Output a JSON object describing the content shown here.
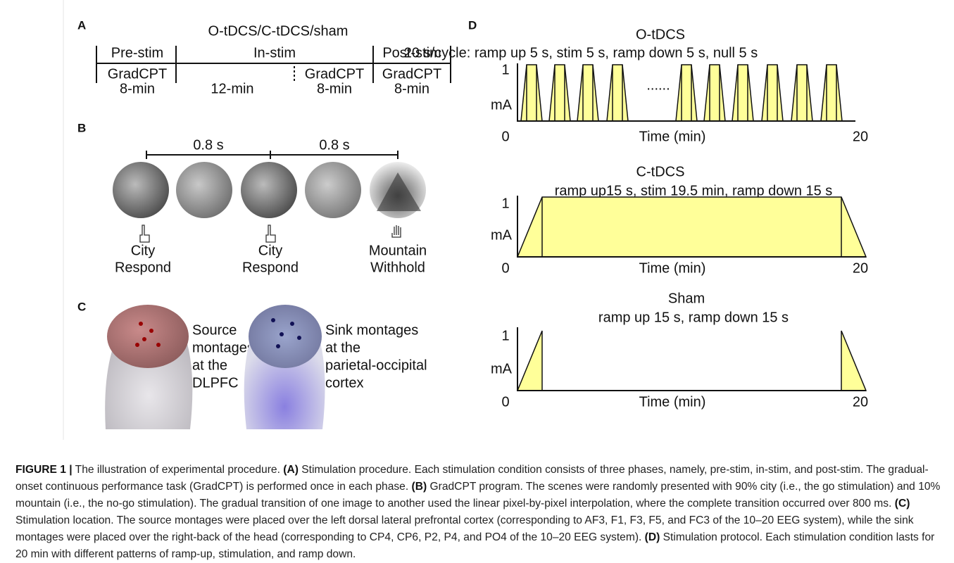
{
  "panel_a": {
    "label": "A",
    "title": "O-tDCS/C-tDCS/sham",
    "phases": [
      "Pre-stim",
      "In-stim",
      "Post-stim"
    ],
    "tasks": [
      "GradCPT",
      "GradCPT",
      "GradCPT"
    ],
    "durations": [
      "8-min",
      "12-min",
      "8-min",
      "8-min"
    ]
  },
  "panel_b": {
    "label": "B",
    "intervals": [
      "0.8 s",
      "0.8 s"
    ],
    "trials": [
      {
        "scene": "City",
        "action": "Respond"
      },
      {
        "scene": "City",
        "action": "Respond"
      },
      {
        "scene": "Mountain",
        "action": "Withhold"
      }
    ]
  },
  "panel_c": {
    "label": "C",
    "source": [
      "Source",
      "montages",
      "at the",
      "DLPFC"
    ],
    "sink": [
      "Sink montages",
      "at the",
      "parietal-occipital",
      "cortex"
    ]
  },
  "panel_d": {
    "label": "D",
    "ellipsis": "......",
    "protocols": [
      {
        "name": "O-tDCS",
        "description": "20 s/cycle: ramp up 5 s, stim 5 s, ramp down 5 s, null 5 s",
        "y_max": 1,
        "y_unit": "mA",
        "x_label": "Time (min)",
        "x_start": 0,
        "x_end": 20
      },
      {
        "name": "C-tDCS",
        "description": "ramp up15 s, stim 19.5 min, ramp down 15 s",
        "y_max": 1,
        "y_unit": "mA",
        "x_label": "Time (min)",
        "x_start": 0,
        "x_end": 20
      },
      {
        "name": "Sham",
        "description": "ramp up 15 s, ramp down 15 s",
        "y_max": 1,
        "y_unit": "mA",
        "x_label": "Time (min)",
        "x_start": 0,
        "x_end": 20
      }
    ]
  },
  "caption": {
    "figure": "FIGURE 1 |",
    "segments": [
      " The illustration of experimental procedure. ",
      "(A)",
      " Stimulation procedure. Each stimulation condition consists of three phases, namely, pre-stim, in-stim, and post-stim. The gradual-onset continuous performance task (GradCPT) is performed once in each phase. ",
      "(B)",
      " GradCPT program. The scenes were randomly presented with 90% city (i.e., the go stimulation) and 10% mountain (i.e., the no-go stimulation). The gradual transition of one image to another used the linear pixel-by-pixel interpolation, where the complete transition occurred over 800 ms. ",
      "(C)",
      " Stimulation location. The source montages were placed over the left dorsal lateral prefrontal cortex (corresponding to AF3, F1, F3, F5, and FC3 of the 10–20 EEG system), while the sink montages were placed over the right-back of the head (corresponding to CP4, CP6, P2, P4, and PO4 of the 10–20 EEG system). ",
      "(D)",
      " Stimulation protocol. Each stimulation condition lasts for 20 min with different patterns of ramp-up, stimulation, and ramp down."
    ]
  }
}
